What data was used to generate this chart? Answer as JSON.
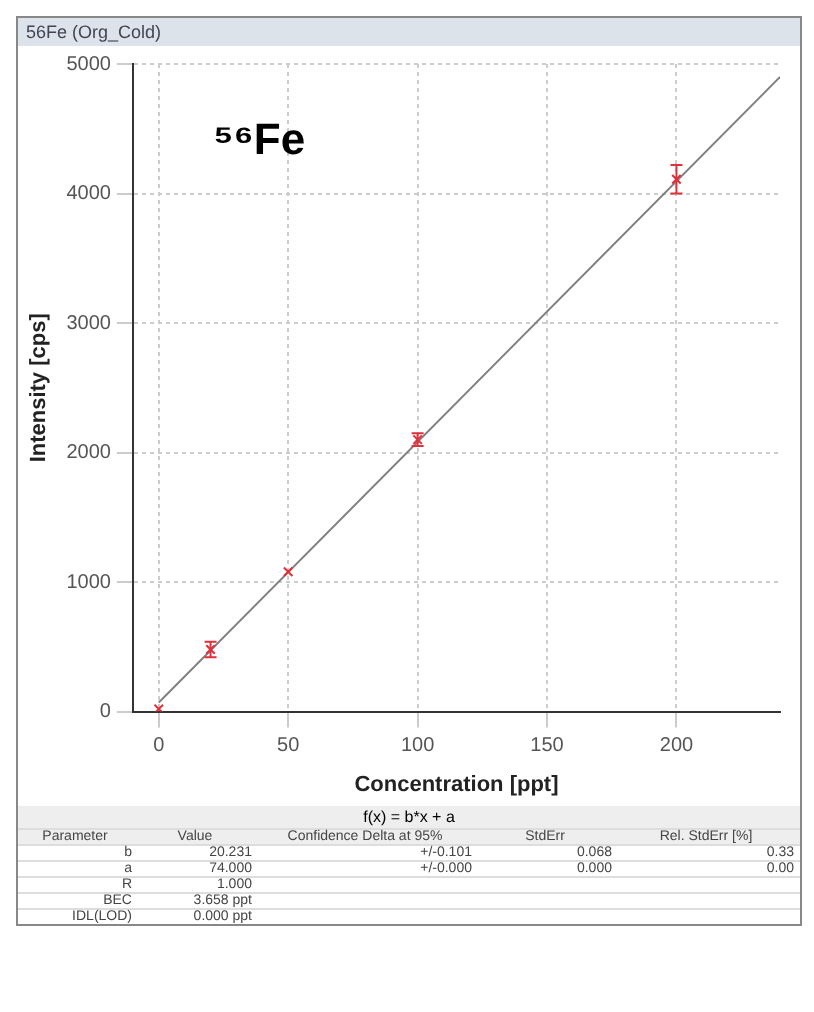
{
  "chart_data": {
    "type": "scatter",
    "title": "⁵⁶Fe",
    "xlabel": "Concentration [ppt]",
    "ylabel": "Intensity [cps]",
    "series": [
      {
        "color": "#e0303a",
        "x": [
          0,
          20,
          50,
          100,
          200
        ],
        "values": [
          20,
          480,
          1080,
          2100,
          4110
        ],
        "errors": [
          null,
          60,
          null,
          50,
          110
        ],
        "marker": "cross"
      },
      {
        "type": "line",
        "color": "#808080",
        "x": [
          0,
          240
        ],
        "values": [
          70,
          4900
        ],
        "marker": "none"
      }
    ],
    "xlim": [
      -10,
      240
    ],
    "xticks": [
      0,
      50,
      100,
      150,
      200
    ],
    "ylim": [
      0,
      5000
    ],
    "yticks": [
      0,
      1000,
      2000,
      3000,
      4000,
      5000
    ],
    "grid": true,
    "legend": false,
    "annotations": [
      "56Fe (Org_Cold)",
      "f(x) = b*x + a",
      "Parameter",
      "Value",
      "Confidence Delta at 95%",
      "StdErr",
      "Rel. StdErr [%]",
      "b",
      "20.231",
      "+/-0.101",
      "0.068",
      "0.33",
      "a",
      "74.000",
      "+/-0.000",
      "0.000",
      "0.00",
      "R",
      "1.000",
      "BEC",
      "3.658 ppt",
      "IDL(LOD)",
      "0.000 ppt"
    ]
  }
}
